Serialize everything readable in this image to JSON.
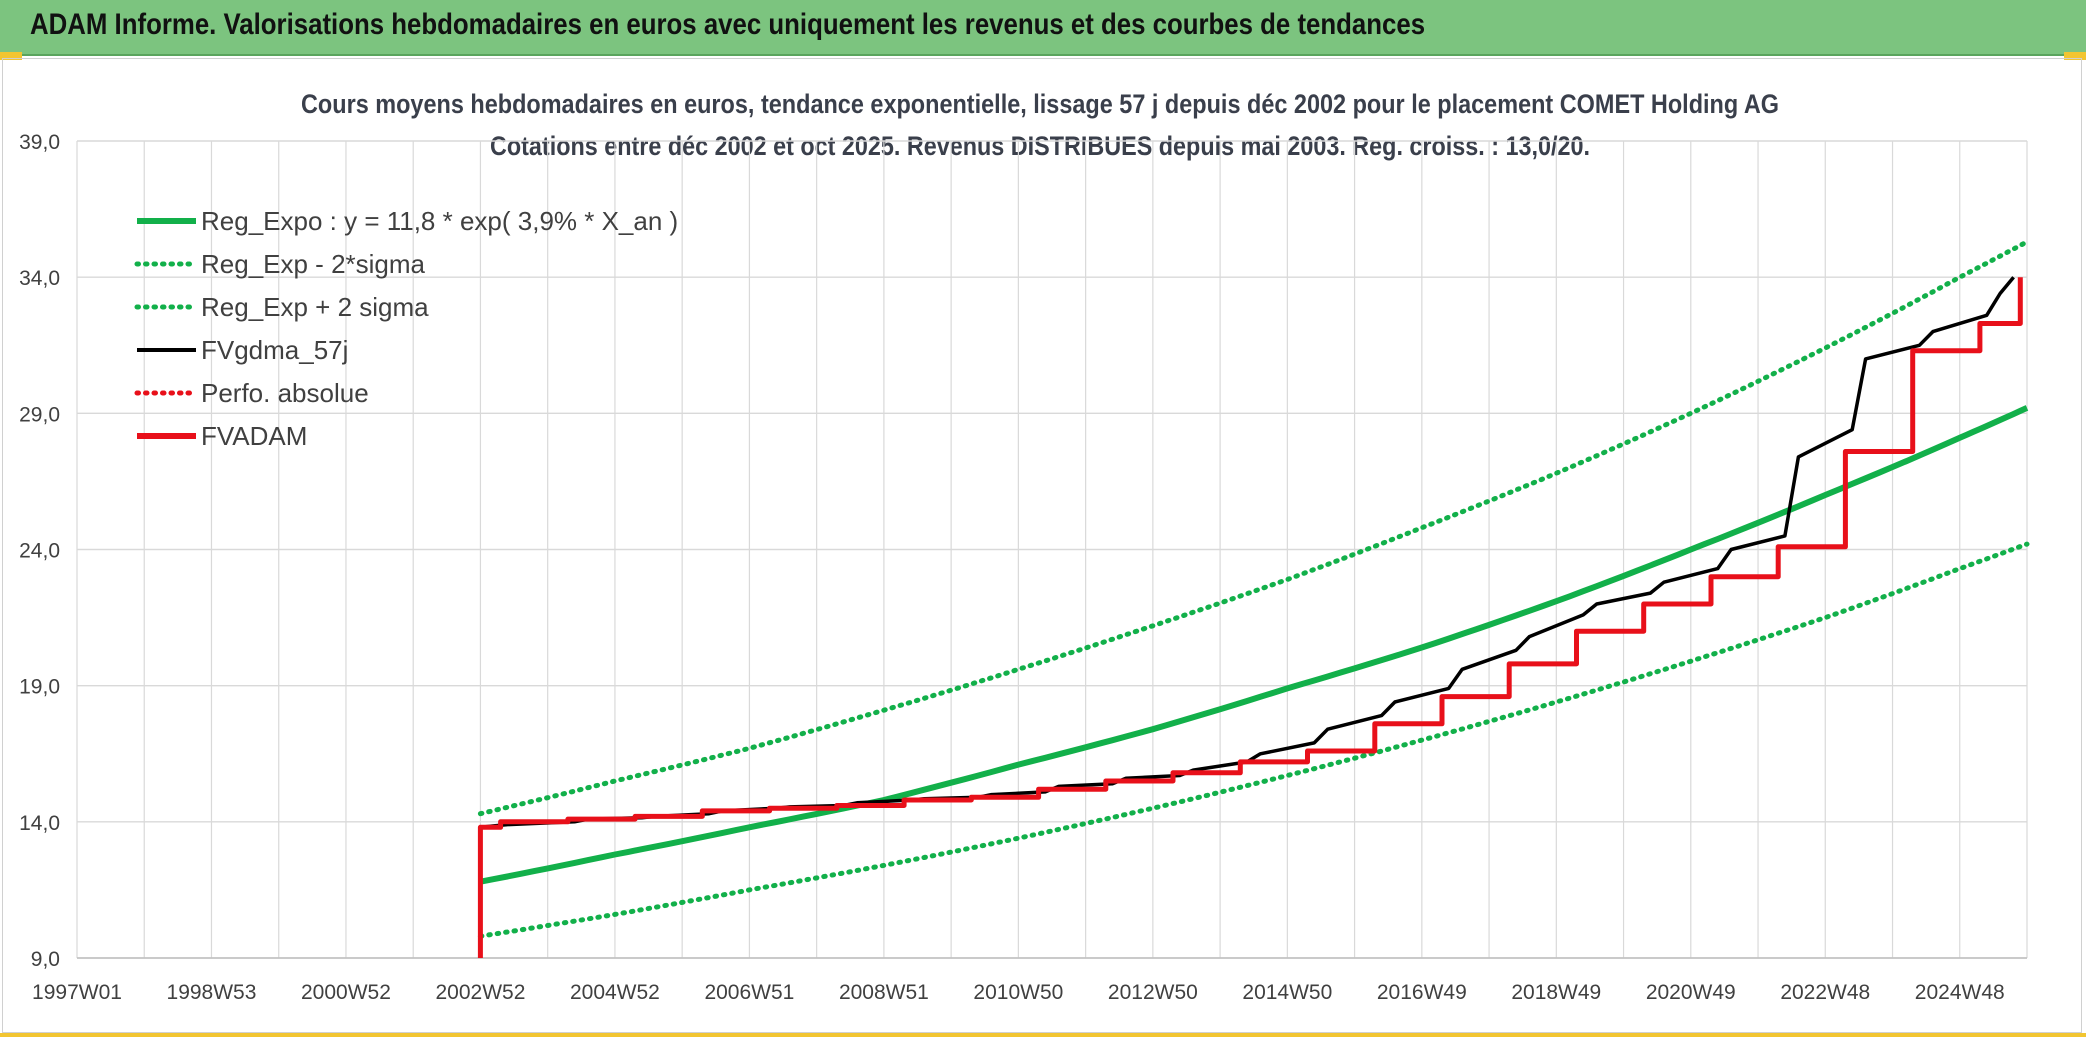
{
  "header": {
    "title": "ADAM Informe. Valorisations hebdomadaires en euros avec uniquement les revenus et des courbes de tendances"
  },
  "colors": {
    "banner": "#7cc47f",
    "accent": "#f2c531",
    "reg_green": "#12b04a",
    "black": "#000000",
    "red": "#e8101a",
    "grid": "#d9d9d9"
  },
  "chart_data": {
    "type": "line",
    "title": "Cours moyens hebdomadaires en euros, tendance exponentielle, lissage 57 j depuis déc 2002 pour le placement COMET Holding AG",
    "subtitle": "Cotations entre déc 2002 et oct 2025. Revenus DISTRIBUES depuis mai 2003. Reg. croiss. : 13,0/20.",
    "xlabel": "",
    "ylabel": "",
    "x_range": [
      1997.0,
      2026.0
    ],
    "ylim": [
      9.0,
      39.0
    ],
    "y_ticks": [
      "39,0",
      "34,0",
      "29,0",
      "24,0",
      "19,0",
      "14,0",
      "9,0"
    ],
    "y_tick_values": [
      39,
      34,
      29,
      24,
      19,
      14,
      9
    ],
    "x_ticks": [
      "1997W01",
      "1998W53",
      "2000W52",
      "2002W52",
      "2004W52",
      "2006W51",
      "2008W51",
      "2010W50",
      "2012W50",
      "2014W50",
      "2016W49",
      "2018W49",
      "2020W49",
      "2022W48",
      "2024W48"
    ],
    "x_tick_values": [
      1997.0,
      1999.0,
      2001.0,
      2003.0,
      2005.0,
      2007.0,
      2009.0,
      2011.0,
      2013.0,
      2015.0,
      2017.0,
      2019.0,
      2021.0,
      2023.0,
      2025.0
    ],
    "grid": true,
    "legend_position": "top-left",
    "series": [
      {
        "name": "Reg_Expo : y = 11,8 * exp( 3,9% *  X_an )",
        "style": "solid",
        "color": "#12b04a",
        "x": [
          2003.0,
          2005.0,
          2007.0,
          2009.0,
          2011.0,
          2013.0,
          2015.0,
          2017.0,
          2019.0,
          2021.0,
          2023.0,
          2025.0,
          2026.0
        ],
        "y": [
          11.8,
          12.8,
          13.8,
          14.8,
          16.1,
          17.4,
          18.9,
          20.4,
          22.1,
          24.0,
          26.0,
          28.1,
          29.2
        ]
      },
      {
        "name": "Reg_Exp - 2*sigma",
        "style": "dotted",
        "color": "#12b04a",
        "x": [
          2003.0,
          2005.0,
          2007.0,
          2009.0,
          2011.0,
          2013.0,
          2015.0,
          2017.0,
          2019.0,
          2021.0,
          2023.0,
          2025.0,
          2026.0
        ],
        "y": [
          9.8,
          10.6,
          11.5,
          12.4,
          13.4,
          14.5,
          15.7,
          17.0,
          18.4,
          19.9,
          21.5,
          23.3,
          24.2
        ]
      },
      {
        "name": "Reg_Exp + 2 sigma",
        "style": "dotted",
        "color": "#12b04a",
        "x": [
          2003.0,
          2005.0,
          2007.0,
          2009.0,
          2011.0,
          2013.0,
          2015.0,
          2017.0,
          2019.0,
          2021.0,
          2023.0,
          2025.0,
          2026.0
        ],
        "y": [
          14.3,
          15.5,
          16.7,
          18.1,
          19.6,
          21.2,
          22.9,
          24.8,
          26.8,
          29.0,
          31.4,
          34.0,
          35.3
        ]
      },
      {
        "name": "FVgdma_57j",
        "style": "solid",
        "color": "#000000",
        "x": [
          2003.0,
          2003.2,
          2003.4,
          2004.4,
          2004.6,
          2005.4,
          2005.6,
          2006.4,
          2006.6,
          2007.4,
          2007.6,
          2008.4,
          2008.6,
          2009.4,
          2009.6,
          2010.4,
          2010.6,
          2011.4,
          2011.6,
          2012.4,
          2012.6,
          2013.4,
          2013.6,
          2014.4,
          2014.6,
          2015.4,
          2015.6,
          2016.4,
          2016.6,
          2017.4,
          2017.6,
          2018.4,
          2018.6,
          2019.4,
          2019.6,
          2020.4,
          2020.6,
          2021.4,
          2021.6,
          2022.4,
          2022.6,
          2023.4,
          2023.6,
          2024.4,
          2024.6,
          2025.4,
          2025.6,
          2025.8
        ],
        "y": [
          13.8,
          13.85,
          13.9,
          14.0,
          14.1,
          14.15,
          14.2,
          14.3,
          14.4,
          14.5,
          14.55,
          14.6,
          14.7,
          14.8,
          14.85,
          14.9,
          15.0,
          15.1,
          15.3,
          15.4,
          15.6,
          15.7,
          15.9,
          16.2,
          16.5,
          16.9,
          17.4,
          17.9,
          18.4,
          18.9,
          19.6,
          20.3,
          20.8,
          21.6,
          22.0,
          22.4,
          22.8,
          23.3,
          24.0,
          24.5,
          27.4,
          28.4,
          31.0,
          31.5,
          32.0,
          32.6,
          33.4,
          34.0
        ]
      },
      {
        "name": "Perfo. absolue",
        "style": "dotted",
        "color": "#e8101a",
        "x": [],
        "y": []
      },
      {
        "name": "FVADAM",
        "style": "solid",
        "color": "#e8101a",
        "step": true,
        "x": [
          2003.0,
          2003.0,
          2003.3,
          2004.3,
          2005.3,
          2006.3,
          2007.3,
          2008.3,
          2009.3,
          2010.3,
          2011.3,
          2012.3,
          2013.3,
          2014.3,
          2015.3,
          2016.3,
          2017.3,
          2018.3,
          2019.3,
          2020.3,
          2021.3,
          2022.3,
          2023.3,
          2024.3,
          2025.3,
          2025.9
        ],
        "y": [
          9.0,
          13.8,
          14.0,
          14.1,
          14.2,
          14.4,
          14.5,
          14.6,
          14.8,
          14.9,
          15.2,
          15.5,
          15.8,
          16.2,
          16.6,
          17.6,
          18.6,
          19.8,
          21.0,
          22.0,
          23.0,
          24.1,
          27.6,
          31.3,
          32.3,
          34.0
        ]
      }
    ]
  }
}
